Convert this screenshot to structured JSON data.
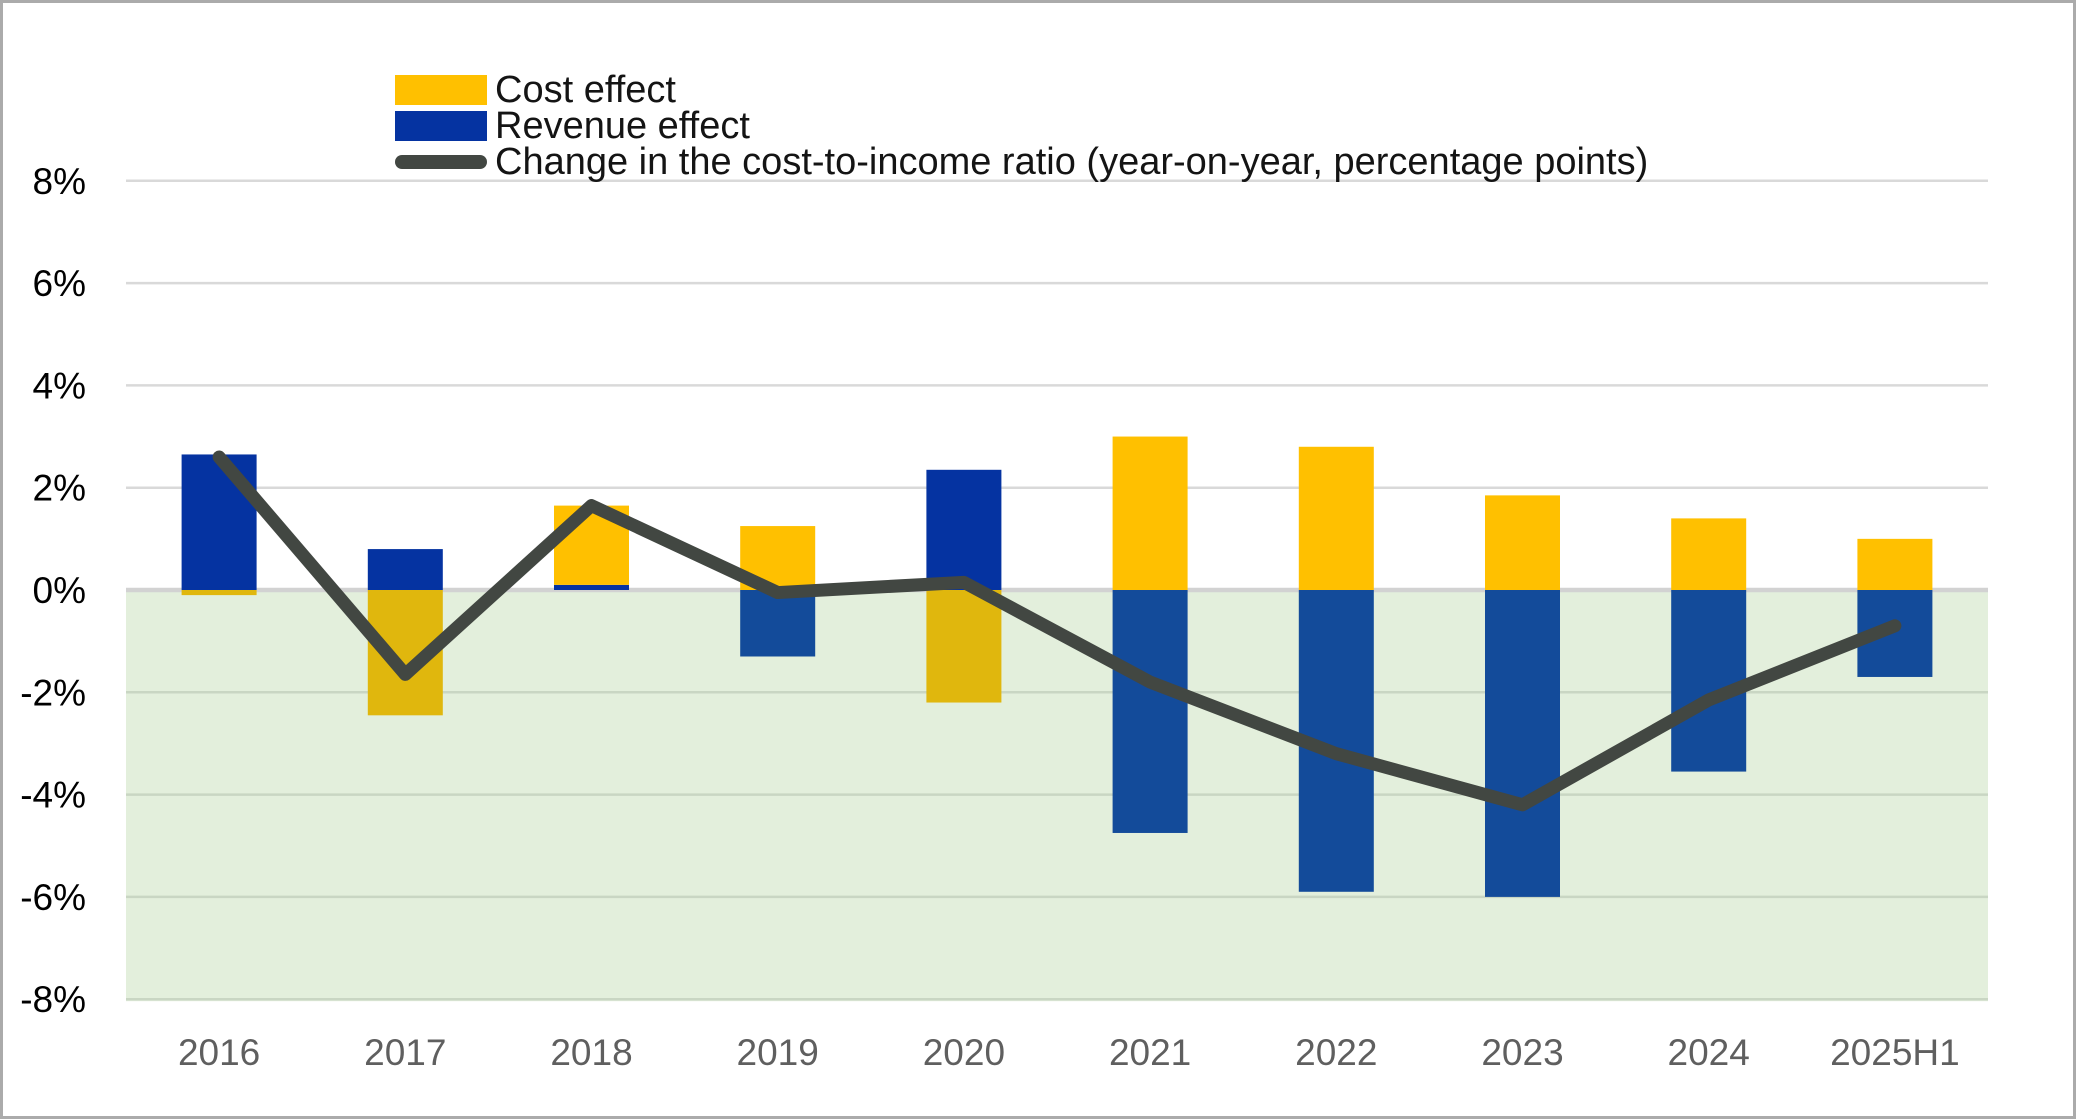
{
  "chart_data": {
    "type": "bar",
    "subtype": "stacked-bar-with-line",
    "title": "",
    "categories": [
      "2016",
      "2017",
      "2018",
      "2019",
      "2020",
      "2021",
      "2022",
      "2023",
      "2024",
      "2025H1"
    ],
    "series": [
      {
        "name": "Cost effect",
        "type": "bar",
        "color_positive": "#FFC000",
        "color_negative": "#E0B70D",
        "values": [
          -0.1,
          -2.45,
          1.55,
          1.25,
          -2.2,
          3.0,
          2.8,
          1.85,
          1.4,
          1.0
        ]
      },
      {
        "name": "Revenue effect",
        "type": "bar",
        "color_positive": "#0533A1",
        "color_negative": "#134B9A",
        "values": [
          2.65,
          0.8,
          0.1,
          -1.3,
          2.35,
          -4.75,
          -5.9,
          -6.0,
          -3.55,
          -1.7
        ]
      },
      {
        "name": "Change in the cost-to-income ratio (year-on-year, percentage points)",
        "type": "line",
        "color": "#424742",
        "values": [
          2.6,
          -1.65,
          1.65,
          -0.05,
          0.15,
          -1.8,
          -3.2,
          -4.2,
          -2.15,
          -0.7
        ]
      }
    ],
    "y_axis": {
      "unit": "%",
      "ylim": [
        -8,
        8
      ],
      "tick_values": [
        8,
        6,
        4,
        2,
        0,
        -2,
        -4,
        -6,
        -8
      ],
      "tick_labels": [
        "8%",
        "6%",
        "4%",
        "2%",
        "0%",
        "-2%",
        "-4%",
        "-6%",
        "-8%"
      ],
      "label_color": "#000000"
    },
    "x_axis": {
      "labels": [
        "2016",
        "2017",
        "2018",
        "2019",
        "2020",
        "2021",
        "2022",
        "2023",
        "2024",
        "2025H1"
      ],
      "label_color": "#5F5F5F"
    },
    "legend_position": "top-left",
    "grid": true,
    "style": {
      "negative_region_fill": "#E3EFDC",
      "gridline_above_zero": "#D9D9D9",
      "gridline_below_zero": "#C9D6C3",
      "zero_line": "#D2D2D2",
      "frame_border": "#ABABAB",
      "canvas": "#FFFFFF"
    }
  }
}
